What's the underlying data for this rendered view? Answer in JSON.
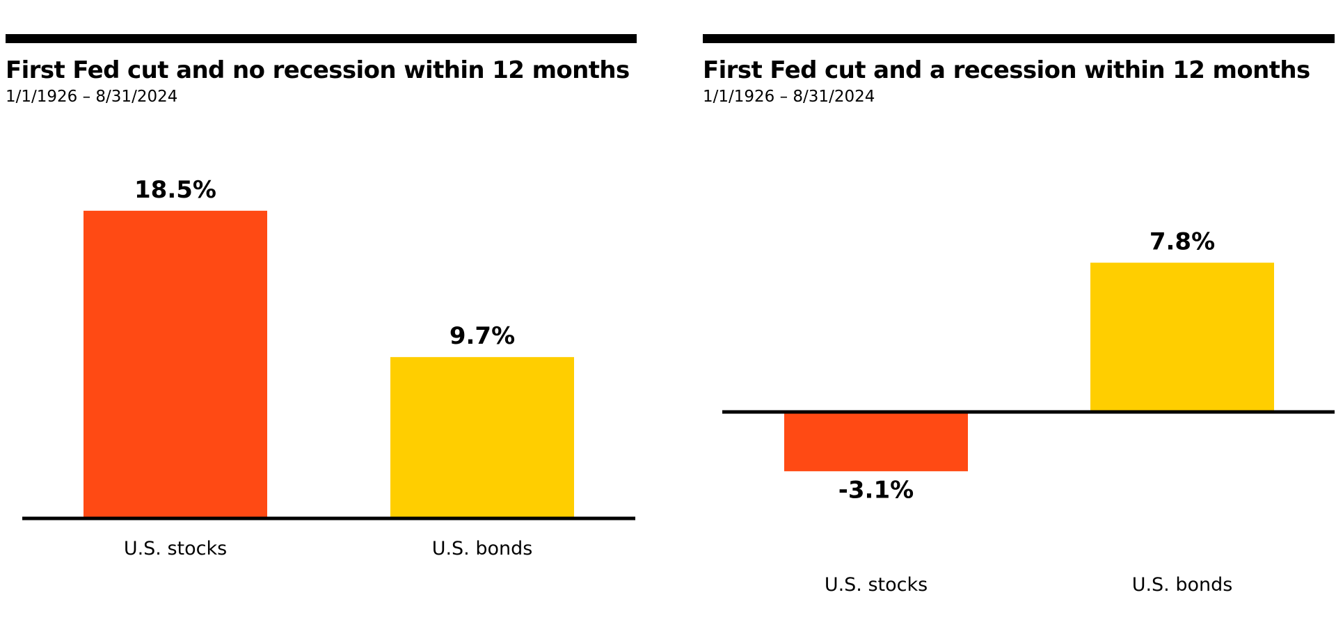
{
  "chart_data": [
    {
      "type": "bar",
      "title": "First Fed cut and no recession within 12 months",
      "subtitle": "1/1/1926 – 8/31/2024",
      "categories": [
        "U.S. stocks",
        "U.S. bonds"
      ],
      "values": [
        18.5,
        9.7
      ],
      "value_labels": [
        "18.5%",
        "9.7%"
      ],
      "colors": [
        "#FF4A14",
        "#FFCE00"
      ],
      "grid": false
    },
    {
      "type": "bar",
      "title": "First Fed cut and a recession within 12 months",
      "subtitle": "1/1/1926 – 8/31/2024",
      "categories": [
        "U.S. stocks",
        "U.S. bonds"
      ],
      "values": [
        -3.1,
        7.8
      ],
      "value_labels": [
        "-3.1%",
        "7.8%"
      ],
      "colors": [
        "#FF4A14",
        "#FFCE00"
      ],
      "grid": false
    }
  ]
}
